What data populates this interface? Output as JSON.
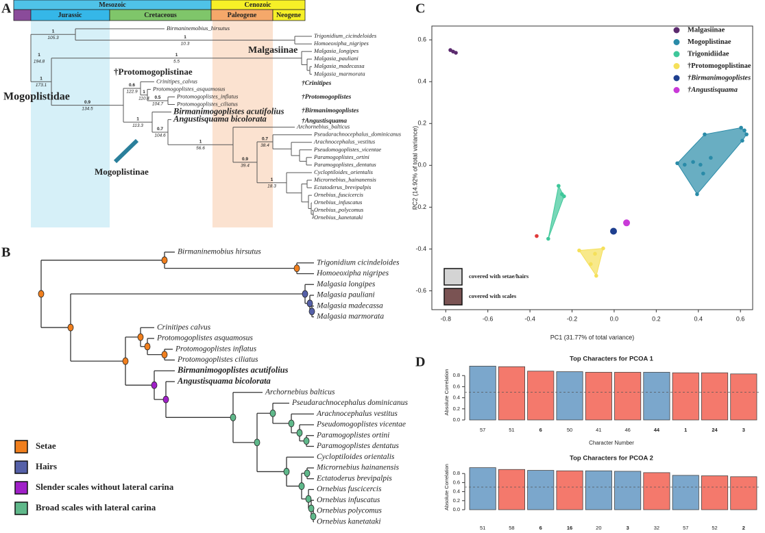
{
  "panel_a": {
    "label": "A",
    "eras": [
      "Mesozoic",
      "Cenozoic"
    ],
    "periods": [
      "Jurassic",
      "Cretaceous",
      "Paleogene",
      "Neogene"
    ],
    "tips": [
      "Birmaninemobius_hirsutus",
      "Trigonidium_cicindeloides",
      "Homoeoxipha_nigripes",
      "Malgasia_longipes",
      "Malgasia_pauliani",
      "Malgasia_madecassa",
      "Malgasia_marmorata",
      "Crinitipes_calvus",
      "Protomogoplistes_asquamosus",
      "Protomogoplistes_inflatus",
      "Protomogoplistes_ciliatus",
      "Birmanimogoplistes acutifolius",
      "Angustisquama bicolorata",
      "Archornebius_balticus",
      "Pseudarachnocephalus_dominicanus",
      "Arachnocephalus_vestitus",
      "Pseudomogoplistes_vicentae",
      "Paramogoplistes_ortini",
      "Paramogoplistes_dentatus",
      "Cycloptiloides_orientalis",
      "Micrornebius_hainanensis",
      "Ectatoderus_brevipalpis",
      "Ornebius_fuscicercis",
      "Ornebius_infuscatus",
      "Ornebius_polycomus",
      "Ornebius_kanetataki"
    ],
    "node_labels": [
      {
        "support": "1",
        "age": "194.8"
      },
      {
        "support": "1",
        "age": "105.3"
      },
      {
        "support": "1",
        "age": "10.3"
      },
      {
        "support": "1",
        "age": "173.1"
      },
      {
        "support": "1",
        "age": "5.5"
      },
      {
        "support": "0.9",
        "age": "134.5"
      },
      {
        "support": "0.6",
        "age": "122.9"
      },
      {
        "support": "1",
        "age": "110.4"
      },
      {
        "support": "0.5",
        "age": "104.7"
      },
      {
        "support": "1",
        "age": "113.3"
      },
      {
        "support": "0.7",
        "age": "104.6"
      },
      {
        "support": "1",
        "age": "56.6"
      },
      {
        "support": "0.9",
        "age": "39.4"
      },
      {
        "support": "0.7",
        "age": "38.4"
      },
      {
        "support": "1",
        "age": "18.3"
      }
    ],
    "clades": [
      "Mogoplistidae",
      "Malgasiinae",
      "†Protomogoplistinae",
      "Mogoplistinae"
    ],
    "groups": [
      "†Crinitipes",
      "†Protomogoplistes",
      "†Birmanimogoplistes",
      "†Angustisquama"
    ]
  },
  "panel_b": {
    "label": "B",
    "tips": [
      "Birmaninemobius hirsutus",
      "Trigonidium cicindeloides",
      "Homoeoxipha nigripes",
      "Malgasia longipes",
      "Malgasia pauliani",
      "Malgasia madecassa",
      "Malgasia marmorata",
      "Crinitipes calvus",
      "Protomogoplistes asquamosus",
      "Protomogoplistes inflatus",
      "Protomogoplistes ciliatus",
      "Birmanimogoplistes acutifolius",
      "Angustisquama bicolorata",
      "Archornebius balticus",
      "Pseudarachnocephalus dominicanus",
      "Arachnocephalus vestitus",
      "Pseudomogoplistes vicentae",
      "Paramogoplistes ortini",
      "Paramogoplistes dentatus",
      "Cycloptiloides orientalis",
      "Micrornebius hainanensis",
      "Ectatoderus brevipalpis",
      "Ornebius fuscicercis",
      "Ornebius infuscatus",
      "Ornebius polycomus",
      "Ornebius kanetataki"
    ],
    "legend": [
      {
        "label": "Setae",
        "color": "#f07f1e"
      },
      {
        "label": "Hairs",
        "color": "#5560a8"
      },
      {
        "label": "Slender scales without lateral carina",
        "color": "#a020c8"
      },
      {
        "label": "Broad scales with lateral carina",
        "color": "#5fb88a"
      }
    ]
  },
  "panel_c_label": "C",
  "panel_d_label": "D",
  "chart_data": [
    {
      "type": "scatter",
      "xlabel": "PC1 (31.77% of total variance)",
      "ylabel": "PC2 (14.92% of total variance)",
      "xlim": [
        -0.866,
        0.658
      ],
      "ylim": [
        -0.69,
        0.666
      ],
      "xticks": [
        -0.8,
        -0.6,
        -0.4,
        -0.2,
        {
          "value": 0,
          "label": "0.0"
        },
        0.2,
        0.4,
        0.6
      ],
      "yticks": [
        -0.6,
        -0.4,
        -0.2,
        {
          "value": 0,
          "label": "0.0"
        },
        0.2,
        0.4,
        0.6
      ],
      "series": [
        {
          "name": "Malgasiinae",
          "color": "#5b2a6e",
          "x": [
            -0.778,
            -0.765,
            -0.752
          ],
          "values": [
            0.551,
            0.544,
            0.538
          ]
        },
        {
          "name": "Mogoplistinae",
          "color": "#2a8ba8",
          "x": [
            0.603,
            0.619,
            0.629,
            0.609,
            0.43,
            0.3,
            0.335,
            0.375,
            0.41,
            0.459,
            0.423,
            0.394
          ],
          "values": [
            0.18,
            0.167,
            0.148,
            0.118,
            0.148,
            0.01,
            0.003,
            0.016,
            0.003,
            0.036,
            -0.039,
            -0.138
          ]
        },
        {
          "name": "Trigonidiidae",
          "color": "#3ec79a",
          "x": [
            -0.264,
            -0.248,
            -0.238,
            -0.313
          ],
          "values": [
            -0.098,
            -0.138,
            -0.148,
            -0.351
          ]
        },
        {
          "name": "†Protomogoplistinae",
          "color": "#f5e05a",
          "x": [
            -0.166,
            -0.091,
            -0.052,
            -0.085,
            -0.111
          ],
          "values": [
            -0.407,
            -0.423,
            -0.397,
            -0.528,
            -0.472
          ]
        },
        {
          "name": "†Birmanimogoplistes",
          "color": "#1e3f8f",
          "x": [
            -0.003
          ],
          "values": [
            -0.315
          ]
        },
        {
          "name": "†Angustisquama",
          "color": "#c93ad8",
          "x": [
            0.059
          ],
          "values": [
            -0.275
          ]
        },
        {
          "color": "#e03a3a",
          "x": [
            -0.368
          ],
          "values": [
            -0.338
          ]
        }
      ],
      "annotations": [
        {
          "text": "covered with setae/hairs",
          "color": "#d4d4d4"
        },
        {
          "text": "covered with scales",
          "color": "#7a5353"
        }
      ]
    },
    {
      "type": "bar",
      "title": "Top Characters for PCOA 1",
      "xlabel": "Character Number",
      "ylabel": "Absolute Correlation",
      "categories": [
        "57",
        "51",
        "6",
        "50",
        "41",
        "46",
        "44",
        "1",
        "24",
        "3"
      ],
      "values": [
        0.97,
        0.96,
        0.88,
        0.87,
        0.86,
        0.86,
        0.86,
        0.85,
        0.85,
        0.83
      ],
      "colors": [
        "#7ba7cc",
        "#f4796c",
        "#f4796c",
        "#7ba7cc",
        "#f4796c",
        "#f4796c",
        "#7ba7cc",
        "#f4796c",
        "#f4796c",
        "#f4796c"
      ],
      "label_colors": [
        "#333333",
        "#333333",
        "#e01010",
        "#333333",
        "#333333",
        "#333333",
        "#e01010",
        "#e01010",
        "#e01010",
        "#e01010"
      ],
      "ylim": [
        0,
        1
      ],
      "yticks": [
        {
          "value": 0,
          "label": "0.0"
        },
        0.2,
        0.4,
        0.6,
        0.8
      ],
      "hline": 0.5
    },
    {
      "type": "bar",
      "title": "Top Characters for PCOA 2",
      "ylabel": "Absolute Correlation",
      "categories": [
        "51",
        "58",
        "6",
        "16",
        "20",
        "3",
        "32",
        "57",
        "52",
        "2"
      ],
      "values": [
        0.93,
        0.89,
        0.87,
        0.86,
        0.86,
        0.85,
        0.82,
        0.76,
        0.75,
        0.73
      ],
      "colors": [
        "#7ba7cc",
        "#f4796c",
        "#7ba7cc",
        "#f4796c",
        "#7ba7cc",
        "#7ba7cc",
        "#f4796c",
        "#7ba7cc",
        "#f4796c",
        "#f4796c"
      ],
      "label_colors": [
        "#333333",
        "#333333",
        "#e01010",
        "#e01010",
        "#333333",
        "#e01010",
        "#333333",
        "#333333",
        "#333333",
        "#e01010"
      ],
      "ylim": [
        0,
        1
      ],
      "yticks": [
        {
          "value": 0,
          "label": "0.0"
        },
        0.2,
        0.4,
        0.6,
        0.8
      ],
      "hline": 0.5
    }
  ]
}
